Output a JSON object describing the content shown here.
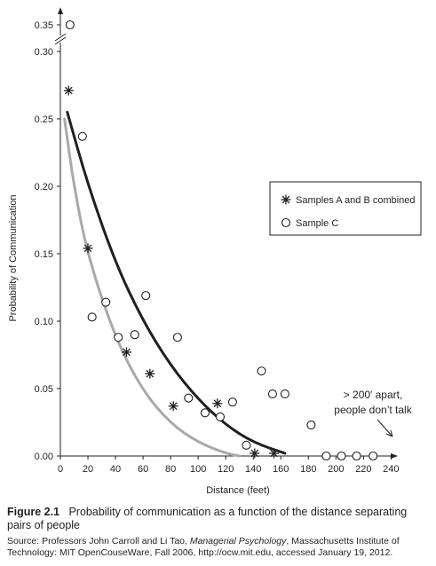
{
  "chart_data": {
    "type": "scatter",
    "xlabel": "Distance (feet)",
    "ylabel": "Probability of Communication",
    "xlim": [
      0,
      250
    ],
    "ylim": [
      0,
      0.35
    ],
    "y_axis_break": true,
    "x_ticks": [
      0,
      20,
      40,
      60,
      80,
      100,
      120,
      140,
      160,
      180,
      200,
      220,
      240
    ],
    "y_ticks": [
      0.0,
      0.05,
      0.1,
      0.15,
      0.2,
      0.25,
      0.3,
      0.35
    ],
    "x_tick_labels": [
      "0",
      "20",
      "40",
      "60",
      "80",
      "100",
      "120",
      "140",
      "160",
      "180",
      "200",
      "220",
      "240"
    ],
    "y_tick_labels": [
      "0.00",
      "0.05",
      "0.10",
      "0.15",
      "0.20",
      "0.25",
      "0.30",
      "0.35"
    ],
    "legend_position": "right",
    "series": [
      {
        "name": "Samples A and B combined",
        "marker": "asterisk",
        "color": "#231f20",
        "points": [
          [
            6,
            0.271
          ],
          [
            20,
            0.154
          ],
          [
            48,
            0.077
          ],
          [
            65,
            0.061
          ],
          [
            82,
            0.037
          ],
          [
            114,
            0.039
          ],
          [
            141,
            0.002
          ],
          [
            155,
            0.002
          ]
        ]
      },
      {
        "name": "Sample C",
        "marker": "open-circle",
        "color": "#231f20",
        "points": [
          [
            7,
            0.35
          ],
          [
            16,
            0.237
          ],
          [
            23,
            0.103
          ],
          [
            33,
            0.114
          ],
          [
            42,
            0.088
          ],
          [
            54,
            0.09
          ],
          [
            62,
            0.119
          ],
          [
            85,
            0.088
          ],
          [
            93,
            0.043
          ],
          [
            105,
            0.032
          ],
          [
            116,
            0.029
          ],
          [
            125,
            0.04
          ],
          [
            135,
            0.008
          ],
          [
            146,
            0.063
          ],
          [
            154,
            0.046
          ],
          [
            163,
            0.046
          ],
          [
            182,
            0.023
          ],
          [
            193,
            0.0
          ],
          [
            204,
            0.0
          ],
          [
            215,
            0.0
          ],
          [
            227,
            0.0
          ]
        ]
      }
    ],
    "curves": [
      {
        "label": "Samples A and B combined fit",
        "color": "#231f20",
        "points": [
          [
            5,
            0.255
          ],
          [
            20,
            0.201
          ],
          [
            40,
            0.143
          ],
          [
            60,
            0.1
          ],
          [
            80,
            0.067
          ],
          [
            100,
            0.042
          ],
          [
            120,
            0.023
          ],
          [
            140,
            0.01
          ],
          [
            163,
            0.002
          ]
        ]
      },
      {
        "label": "Sample C fit",
        "color": "#a7a9ac",
        "points": [
          [
            3,
            0.25
          ],
          [
            10,
            0.199
          ],
          [
            20,
            0.148
          ],
          [
            40,
            0.087
          ],
          [
            60,
            0.048
          ],
          [
            80,
            0.024
          ],
          [
            100,
            0.01
          ],
          [
            120,
            0.002
          ],
          [
            130,
            0.0
          ]
        ]
      }
    ],
    "annotations": [
      {
        "lines": [
          "> 200′ apart,",
          "people don’t talk"
        ]
      }
    ]
  },
  "caption": {
    "figure_label": "Figure 2.1",
    "text": "Probability of communication as a function of the distance separating pairs of people",
    "source_prefix": "Source: Professors John Carroll and Li Tao, ",
    "source_title": "Managerial Psychology",
    "source_suffix": ", Massachusetts Institute of Technology: MIT OpenCouseWare, Fall 2006, http://ocw.mit.edu, accessed January 19, 2012."
  }
}
